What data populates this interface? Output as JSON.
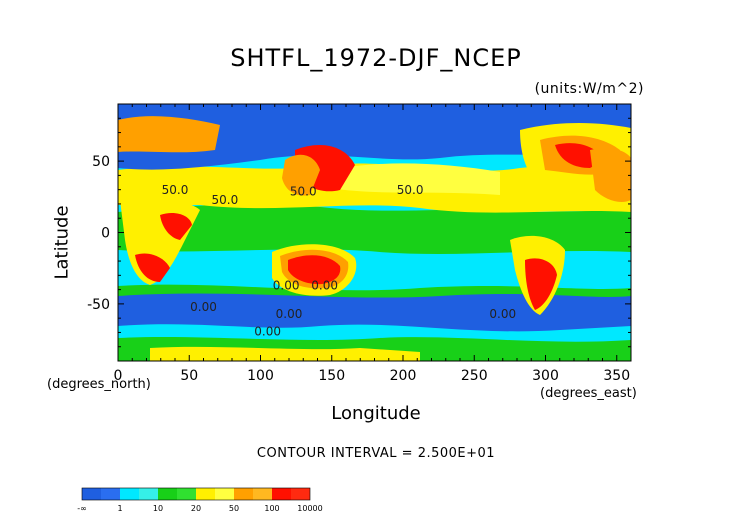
{
  "chart_data": {
    "type": "heatmap",
    "title": "SHTFL_1972-DJF_NCEP",
    "units": "(units:W/m^2)",
    "xlabel": "Longitude",
    "ylabel": "Latitude",
    "x_unit_label": "(degrees_east)",
    "y_unit_label": "(degrees_north)",
    "xlim": [
      0,
      360
    ],
    "ylim": [
      -90,
      90
    ],
    "x_ticks": [
      0,
      50,
      100,
      150,
      200,
      250,
      300,
      350
    ],
    "y_ticks": [
      -50,
      0,
      50
    ],
    "contour_interval": "CONTOUR INTERVAL = 2.500E+01",
    "contour_labels": [
      "50.0",
      "50.0",
      "50.0",
      "50.0",
      "0.00",
      "0.00",
      "0.00",
      "0.00",
      "0.00",
      "0.00"
    ],
    "colorbar": {
      "ticks": [
        "-∞",
        "1",
        "10",
        "20",
        "50",
        "100",
        "10000"
      ],
      "colors": [
        "#1f5fe0",
        "#2a6ef0",
        "#00e8ff",
        "#35f0e8",
        "#18d018",
        "#30e030",
        "#fff000",
        "#ffff40",
        "#ffa000",
        "#ffb820",
        "#ff1000",
        "#ff2a10"
      ]
    },
    "colors": {
      "blue": "#1f5fe0",
      "cyan": "#00e8ff",
      "green": "#18d018",
      "yellow": "#fff000",
      "orange": "#ffa000",
      "red": "#ff1000"
    }
  }
}
